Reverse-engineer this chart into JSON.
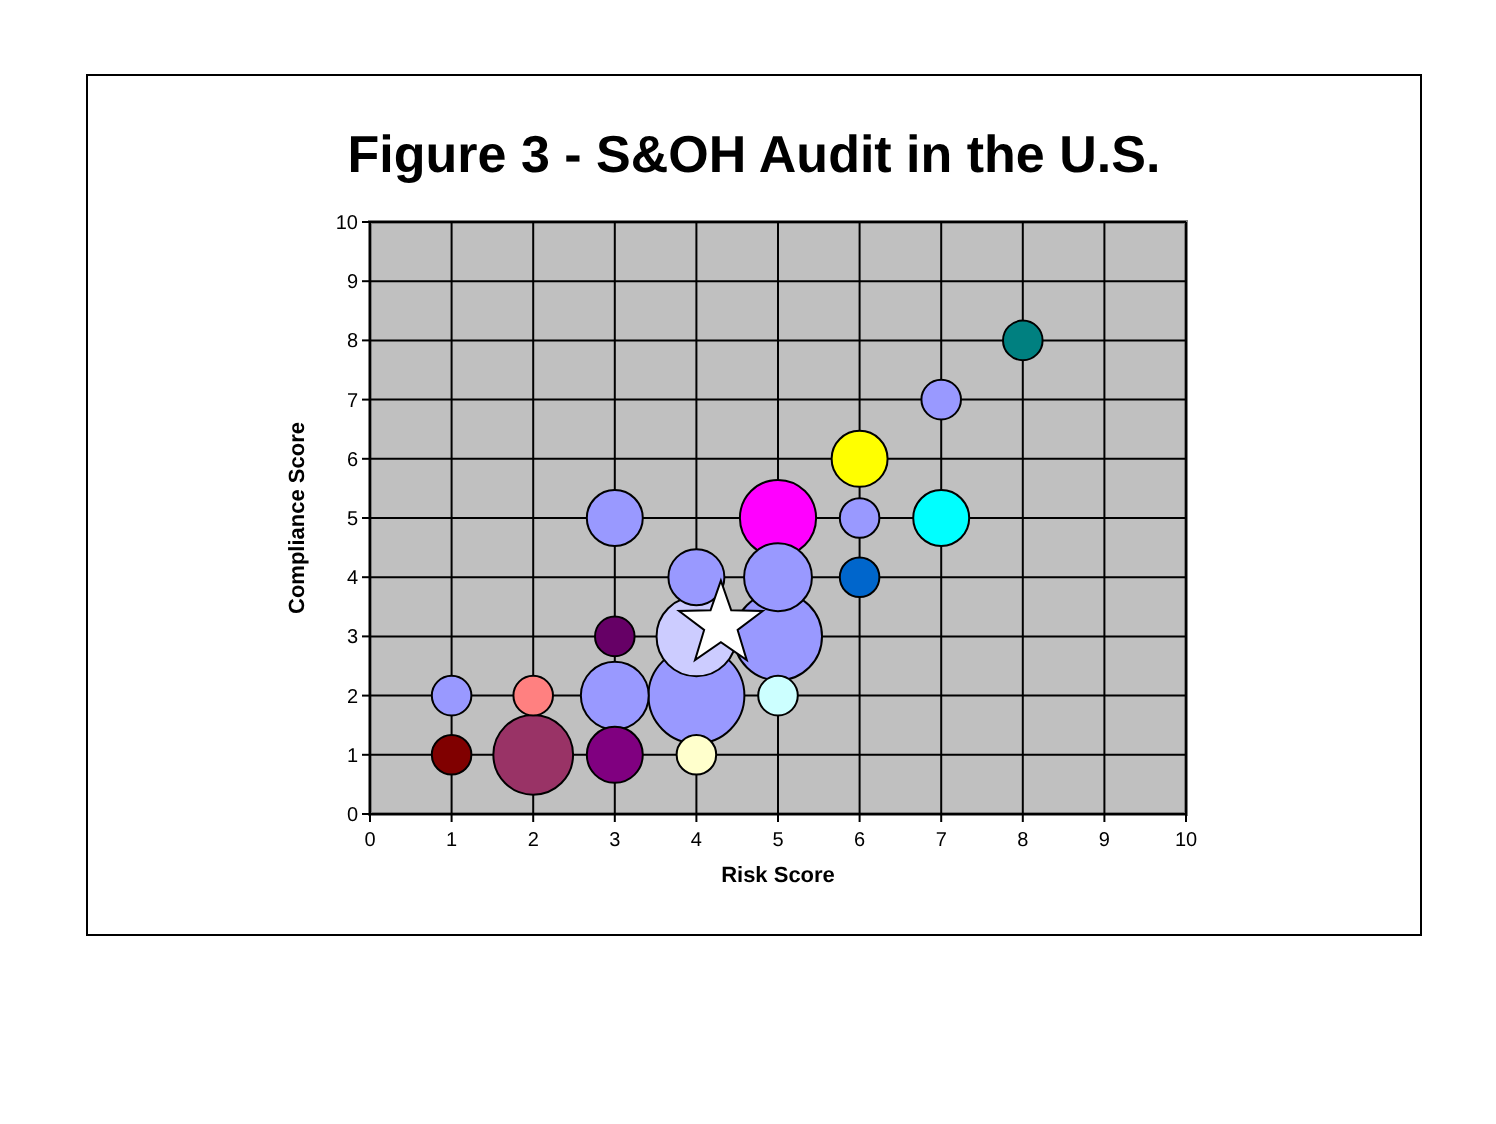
{
  "chart_data": {
    "type": "bubble",
    "title": "Figure 3 - S&OH Audit in the U.S.",
    "xlabel": "Risk Score",
    "ylabel": "Compliance Score",
    "xlim": [
      0,
      10
    ],
    "ylim": [
      0,
      10
    ],
    "xticks": [
      0,
      1,
      2,
      3,
      4,
      5,
      6,
      7,
      8,
      9,
      10
    ],
    "yticks": [
      0,
      1,
      2,
      3,
      4,
      5,
      6,
      7,
      8,
      9,
      10
    ],
    "grid": true,
    "series": [
      {
        "x": [
          1,
          1,
          2,
          2,
          3,
          3,
          3,
          3,
          4,
          4,
          4,
          4,
          5,
          5,
          5,
          5,
          6,
          6,
          6,
          7,
          7,
          8
        ],
        "values": [
          1,
          2,
          2,
          1,
          1,
          2,
          3,
          5,
          1,
          2,
          3,
          4,
          2,
          3,
          4,
          5,
          4,
          5,
          6,
          5,
          7,
          8
        ],
        "sizes": [
          0.17,
          0.17,
          0.17,
          0.69,
          0.34,
          0.5,
          0.17,
          0.34,
          0.17,
          1,
          0.69,
          0.34,
          0.17,
          0.84,
          0.5,
          0.63,
          0.17,
          0.17,
          0.34,
          0.34,
          0.17,
          0.17
        ],
        "colors": [
          "#800000",
          "#9999ff",
          "#ff8080",
          "#993366",
          "#800080",
          "#9999ff",
          "#660066",
          "#9999ff",
          "#ffffcc",
          "#9999ff",
          "#ccccff",
          "#9999ff",
          "#ccffff",
          "#9999ff",
          "#9999ff",
          "#ff00ff",
          "#0066cc",
          "#9999ff",
          "#ffff00",
          "#00ffff",
          "#9999ff",
          "#008080"
        ]
      },
      {
        "type": "scatter",
        "x": [
          4.3
        ],
        "values": [
          3.2
        ],
        "color": "#ffffff",
        "marker": "star"
      }
    ]
  }
}
